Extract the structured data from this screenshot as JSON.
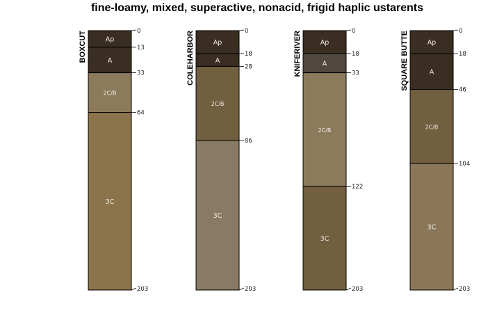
{
  "chart_data": {
    "type": "soil-profile-sketch",
    "title": "fine-loamy, mixed, superactive, nonacid, frigid haplic ustarents",
    "depth_unit": "cm",
    "depth_range": [
      0,
      203
    ],
    "profiles": [
      {
        "name": "BOXCUT",
        "horizons": [
          {
            "name": "Ap",
            "top": 0,
            "bottom": 13,
            "color": "#3a2d22"
          },
          {
            "name": "A",
            "top": 13,
            "bottom": 33,
            "color": "#3a2d22"
          },
          {
            "name": "2C/B",
            "top": 33,
            "bottom": 64,
            "color": "#8c7a5c"
          },
          {
            "name": "3C",
            "top": 64,
            "bottom": 203,
            "color": "#8b744c"
          }
        ],
        "depth_labels": [
          0,
          13,
          33,
          64,
          203
        ]
      },
      {
        "name": "COLEHARBOR",
        "horizons": [
          {
            "name": "Ap",
            "top": 0,
            "bottom": 18,
            "color": "#3a2d22"
          },
          {
            "name": "A",
            "top": 18,
            "bottom": 28,
            "color": "#3a2d22"
          },
          {
            "name": "2C/B",
            "top": 28,
            "bottom": 86,
            "color": "#725f40"
          },
          {
            "name": "3C",
            "top": 86,
            "bottom": 203,
            "color": "#887a64"
          }
        ],
        "depth_labels": [
          0,
          18,
          28,
          86,
          203
        ]
      },
      {
        "name": "KNIFERIVER",
        "horizons": [
          {
            "name": "Ap",
            "top": 0,
            "bottom": 18,
            "color": "#3a2d22"
          },
          {
            "name": "A",
            "top": 18,
            "bottom": 33,
            "color": "#504840"
          },
          {
            "name": "2C/B",
            "top": 33,
            "bottom": 122,
            "color": "#8c7a5c"
          },
          {
            "name": "3C",
            "top": 122,
            "bottom": 203,
            "color": "#725f40"
          }
        ],
        "depth_labels": [
          0,
          18,
          33,
          122,
          203
        ]
      },
      {
        "name": "SQUARE BUTTE",
        "horizons": [
          {
            "name": "Ap",
            "top": 0,
            "bottom": 18,
            "color": "#3a2d22"
          },
          {
            "name": "A",
            "top": 18,
            "bottom": 46,
            "color": "#3a2d22"
          },
          {
            "name": "2C/B",
            "top": 46,
            "bottom": 104,
            "color": "#725f40"
          },
          {
            "name": "3C",
            "top": 104,
            "bottom": 203,
            "color": "#8b7758"
          }
        ],
        "depth_labels": [
          0,
          18,
          46,
          104,
          203
        ]
      }
    ]
  }
}
